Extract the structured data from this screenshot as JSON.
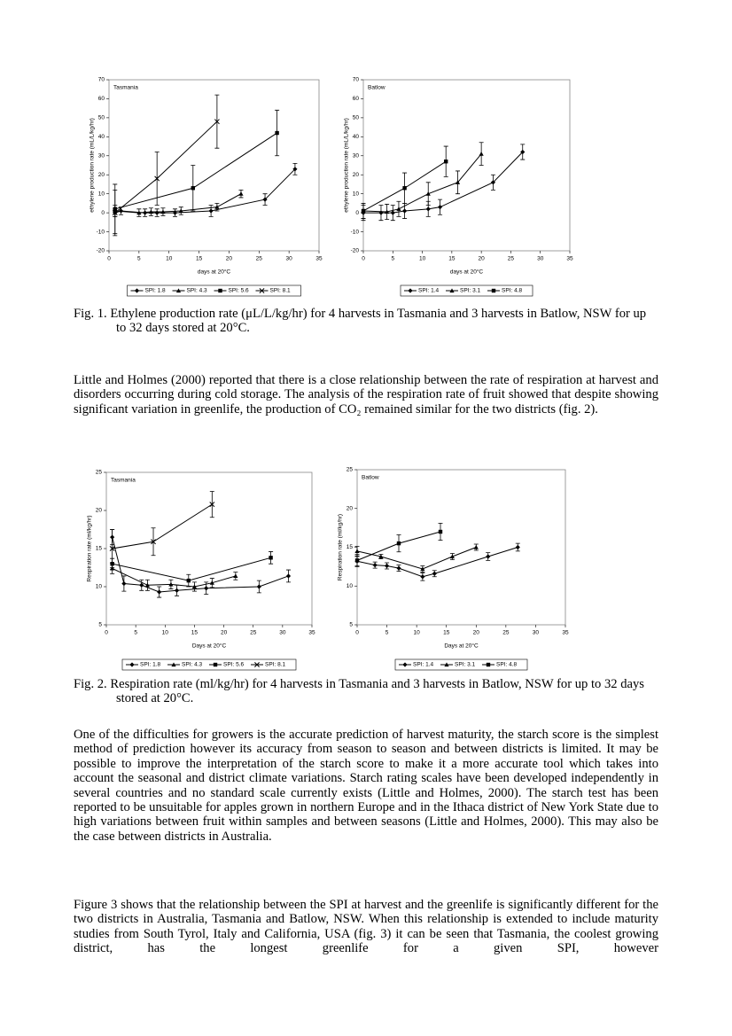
{
  "chart_data": [
    {
      "type": "line",
      "title": "Tasmania",
      "xlabel": "days at 20°C",
      "ylabel": "ethylene production rate (mL/L/kg/hr)",
      "xlim": [
        0,
        35
      ],
      "xticks": [
        0,
        5,
        10,
        15,
        20,
        25,
        30,
        35
      ],
      "ylim": [
        -20,
        70
      ],
      "yticks": [
        -20,
        -10,
        0,
        10,
        20,
        30,
        40,
        50,
        60,
        70
      ],
      "series": [
        {
          "name": "SPI: 1.8",
          "color": "#000000",
          "marker": "diamond",
          "x": [
            1,
            2,
            6,
            8,
            11,
            17,
            26,
            31
          ],
          "values": [
            0,
            1,
            0,
            0,
            0,
            1,
            7,
            23
          ],
          "errors": [
            2,
            2,
            2,
            2,
            2,
            3,
            3,
            3
          ]
        },
        {
          "name": "SPI: 4.3",
          "color": "#000000",
          "marker": "triangle",
          "x": [
            1,
            5,
            7,
            9,
            12,
            18,
            22
          ],
          "values": [
            1,
            0,
            0.5,
            0.5,
            1,
            3,
            10
          ],
          "errors": [
            3,
            2,
            2,
            2,
            2,
            2,
            2
          ]
        },
        {
          "name": "SPI: 5.6",
          "color": "#000000",
          "marker": "square",
          "x": [
            1,
            14,
            28
          ],
          "values": [
            2,
            13,
            42
          ],
          "errors": [
            13,
            12,
            12
          ]
        },
        {
          "name": "SPI: 8.1",
          "color": "#000000",
          "marker": "x",
          "x": [
            1,
            8,
            18
          ],
          "values": [
            0,
            18,
            48
          ],
          "errors": [
            12,
            14,
            14
          ]
        }
      ]
    },
    {
      "type": "line",
      "title": "Batlow",
      "xlabel": "days at 20°C",
      "ylabel": "ethylene production rate (mL/L/kg/hr)",
      "xlim": [
        0,
        35
      ],
      "xticks": [
        0,
        5,
        10,
        15,
        20,
        25,
        30,
        35
      ],
      "ylim": [
        -20,
        70
      ],
      "yticks": [
        -20,
        -10,
        0,
        10,
        20,
        30,
        40,
        50,
        60,
        70
      ],
      "series": [
        {
          "name": "SPI: 1.4",
          "color": "#000000",
          "marker": "diamond",
          "x": [
            0,
            3,
            5,
            7,
            11,
            13,
            22,
            27
          ],
          "values": [
            0,
            0,
            0,
            1,
            2,
            3,
            16,
            32
          ],
          "errors": [
            4,
            4,
            4,
            4,
            4,
            4,
            4,
            4
          ]
        },
        {
          "name": "SPI: 3.1",
          "color": "#000000",
          "marker": "triangle",
          "x": [
            0,
            4,
            6,
            11,
            16,
            20
          ],
          "values": [
            1,
            0.5,
            2,
            10,
            16,
            31
          ],
          "errors": [
            4,
            4,
            4,
            6,
            6,
            6
          ]
        },
        {
          "name": "SPI: 4.8",
          "color": "#000000",
          "marker": "square",
          "x": [
            0,
            7,
            14
          ],
          "values": [
            1,
            13,
            27
          ],
          "errors": [
            4,
            8,
            8
          ]
        }
      ]
    },
    {
      "type": "line",
      "title": "Tasmania",
      "xlabel": "Days at 20°C",
      "ylabel": "Respiration rate (ml/kg/hr)",
      "xlim": [
        0,
        35
      ],
      "xticks": [
        0,
        5,
        10,
        15,
        20,
        25,
        30,
        35
      ],
      "ylim": [
        5,
        25
      ],
      "yticks": [
        5,
        10,
        15,
        20,
        25
      ],
      "series": [
        {
          "name": "SPI: 1.8",
          "color": "#000000",
          "marker": "diamond",
          "x": [
            1,
            3,
            6,
            9,
            12,
            17,
            26,
            31
          ],
          "values": [
            16.5,
            10.4,
            10.2,
            9.3,
            9.5,
            9.8,
            10,
            11.4
          ],
          "errors": [
            1,
            1,
            0.7,
            0.7,
            0.7,
            0.8,
            0.8,
            0.8
          ]
        },
        {
          "name": "SPI: 4.3",
          "color": "#000000",
          "marker": "triangle",
          "x": [
            1,
            7,
            11,
            15,
            18,
            22
          ],
          "values": [
            12.4,
            10.2,
            10.3,
            10,
            10.5,
            11.4
          ],
          "errors": [
            0.7,
            0.7,
            0.6,
            0.6,
            0.6,
            0.5
          ]
        },
        {
          "name": "SPI: 5.6",
          "color": "#000000",
          "marker": "square",
          "x": [
            1,
            14,
            28
          ],
          "values": [
            13,
            10.8,
            13.8
          ],
          "errors": [
            0.7,
            0.8,
            0.8
          ]
        },
        {
          "name": "SPI: 8.1",
          "color": "#000000",
          "marker": "x",
          "x": [
            1,
            8,
            18
          ],
          "values": [
            15,
            15.9,
            20.8
          ],
          "errors": [
            2.5,
            1.8,
            1.7
          ]
        }
      ]
    },
    {
      "type": "line",
      "title": "Batlow",
      "xlabel": "Days at 20°C",
      "ylabel": "Respiration rate (ml/kg/hr)",
      "xlim": [
        0,
        35
      ],
      "xticks": [
        0,
        5,
        10,
        15,
        20,
        25,
        30,
        35
      ],
      "ylim": [
        5,
        25
      ],
      "yticks": [
        5,
        10,
        15,
        20,
        25
      ],
      "series": [
        {
          "name": "SPI: 1.4",
          "color": "#000000",
          "marker": "diamond",
          "x": [
            0,
            3,
            5,
            7,
            11,
            13,
            22,
            27
          ],
          "values": [
            13.2,
            12.7,
            12.6,
            12.3,
            11.2,
            11.6,
            13.8,
            15
          ],
          "errors": [
            0.6,
            0.4,
            0.4,
            0.4,
            0.5,
            0.4,
            0.5,
            0.5
          ]
        },
        {
          "name": "SPI: 3.1",
          "color": "#000000",
          "marker": "triangle",
          "x": [
            0,
            4,
            11,
            16,
            20
          ],
          "values": [
            14.5,
            13.8,
            12.2,
            13.8,
            15
          ],
          "errors": [
            0.6,
            0.3,
            0.4,
            0.4,
            0.4
          ]
        },
        {
          "name": "SPI: 4.8",
          "color": "#000000",
          "marker": "square",
          "x": [
            0,
            7,
            14
          ],
          "values": [
            13.3,
            15.5,
            17
          ],
          "errors": [
            0.8,
            1.1,
            1.1
          ]
        }
      ]
    }
  ],
  "document": {
    "captions": [
      "Fig. 1. Ethylene production rate (μL/L/kg/hr) for 4 harvests in Tasmania and 3 harvests in Batlow, NSW for up to 32 days stored at 20°C.",
      "Fig. 2. Respiration rate (ml/kg/hr) for 4 harvests in Tasmania and 3 harvests in Batlow, NSW for up to 32 days stored at 20°C."
    ],
    "paragraphs": [
      "Little and Holmes (2000) reported that there is a close relationship between the rate of respiration at harvest and disorders occurring during cold storage. The analysis of the respiration rate of fruit showed that despite showing significant variation in greenlife, the production of CO₂ remained similar for the two districts (fig. 2).",
      "One of the difficulties for growers is the accurate prediction of harvest maturity, the starch score is the simplest method of prediction however its accuracy from season to season and between districts is limited. It may be possible to improve the interpretation of the starch score to make it a more accurate tool which takes into account the seasonal and district climate variations. Starch rating scales have been developed independently in several countries and no standard scale currently exists (Little and Holmes, 2000). The starch test has been reported to be unsuitable for apples grown in northern Europe and in the Ithaca district of New York State due to high variations between fruit within samples and between seasons (Little and Holmes, 2000). This may also be the case between districts in Australia.",
      "Figure 3 shows that the relationship between the SPI at harvest and the greenlife is significantly different for the two districts in Australia, Tasmania and Batlow, NSW. When this relationship is extended to include maturity studies from South Tyrol, Italy and California, USA (fig. 3) it can be seen that Tasmania, the coolest growing district, has the longest greenlife for a given SPI, however"
    ]
  }
}
